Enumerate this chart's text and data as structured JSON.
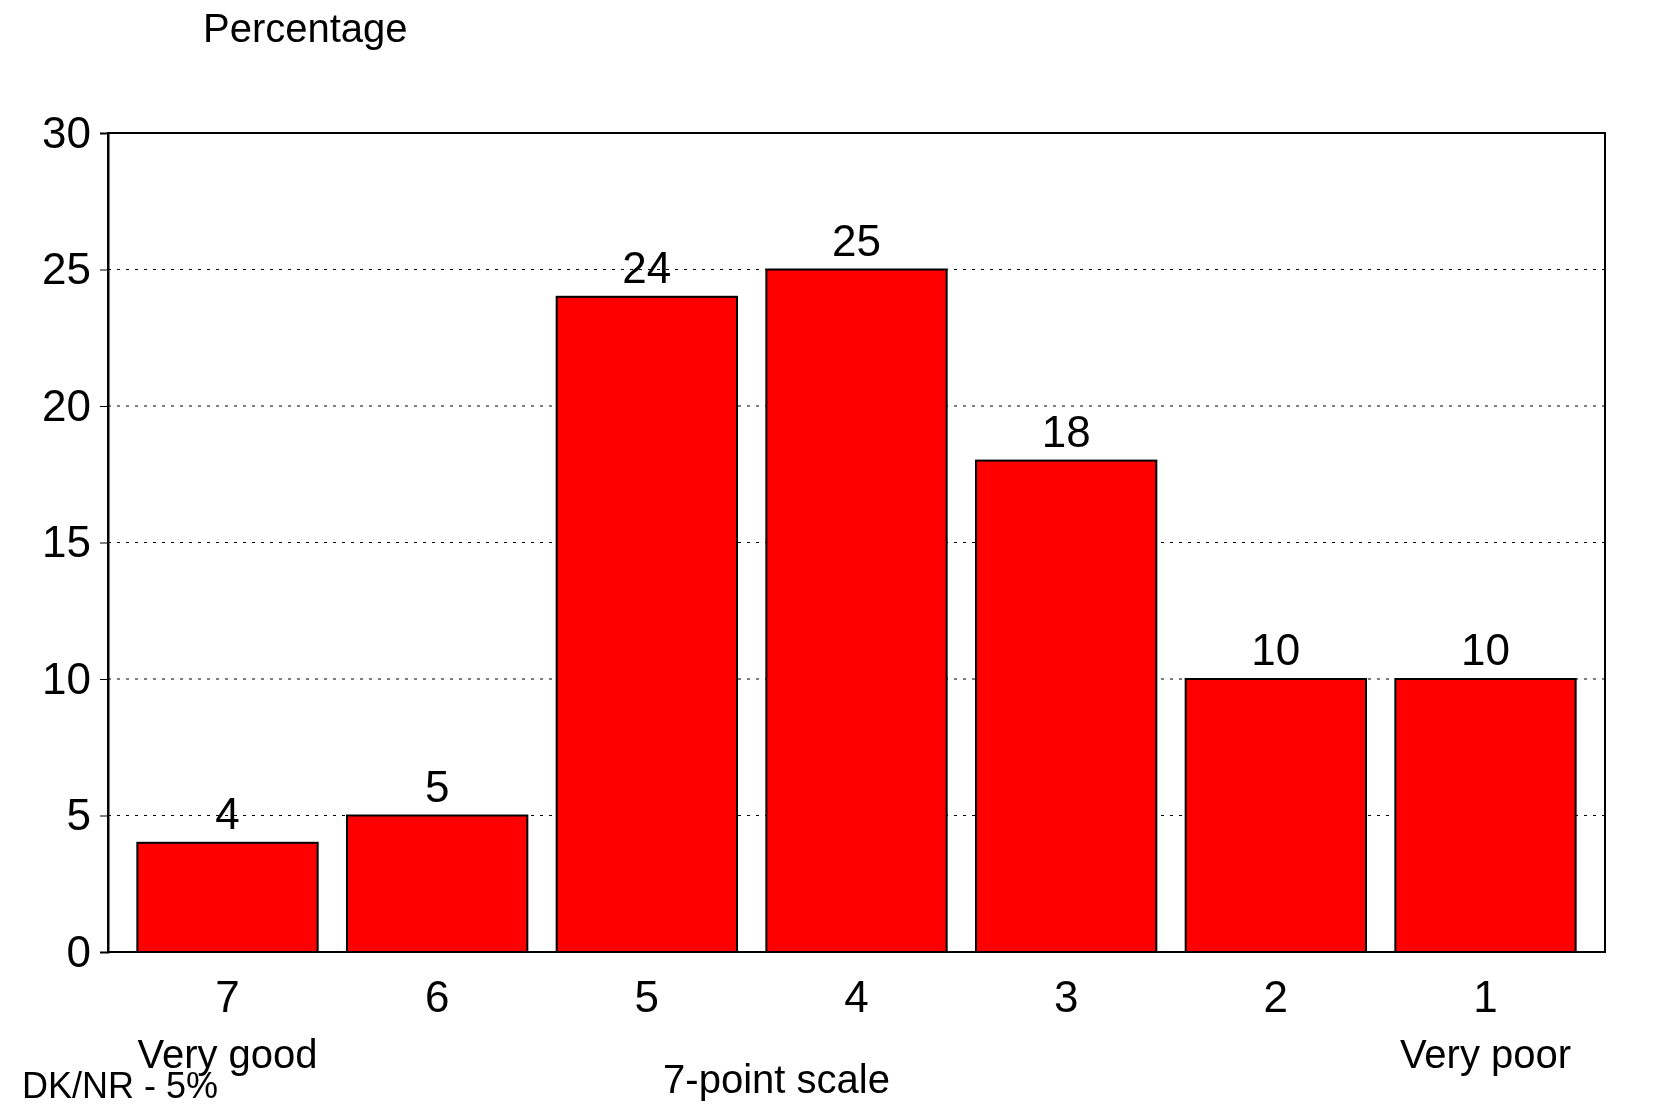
{
  "chart_data": {
    "type": "bar",
    "ylabel": "Percentage",
    "xlabel": "7-point scale",
    "categories": [
      "7",
      "6",
      "5",
      "4",
      "3",
      "2",
      "1"
    ],
    "values": [
      4,
      5,
      24,
      25,
      18,
      10,
      10
    ],
    "color": "#ff0000",
    "ylim": [
      0,
      30
    ],
    "yticks": [
      0,
      5,
      10,
      15,
      20,
      25,
      30
    ],
    "grid": "y",
    "data_labels": true,
    "annotations": [
      "Very good",
      "Very poor",
      "DK/NR - 5%"
    ]
  }
}
